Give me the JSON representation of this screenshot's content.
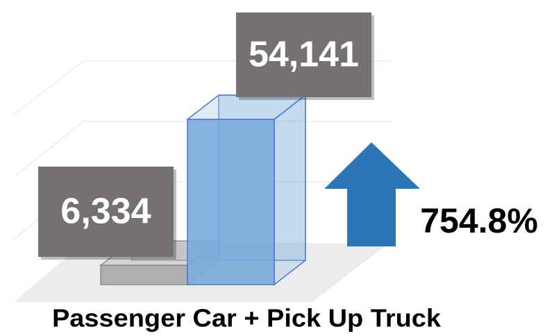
{
  "chart_data": {
    "type": "bar",
    "categories": [
      null,
      null
    ],
    "series": [
      {
        "values": [
          6334,
          54141
        ],
        "value_labels": [
          "6,334",
          "54,141"
        ],
        "colors": [
          "#a9a9a9",
          "#7aaadc"
        ]
      }
    ],
    "x_label": "Passenger Car + Pick Up Truck",
    "annotation": "754.8%",
    "annotation_color": "#2e75b6"
  }
}
